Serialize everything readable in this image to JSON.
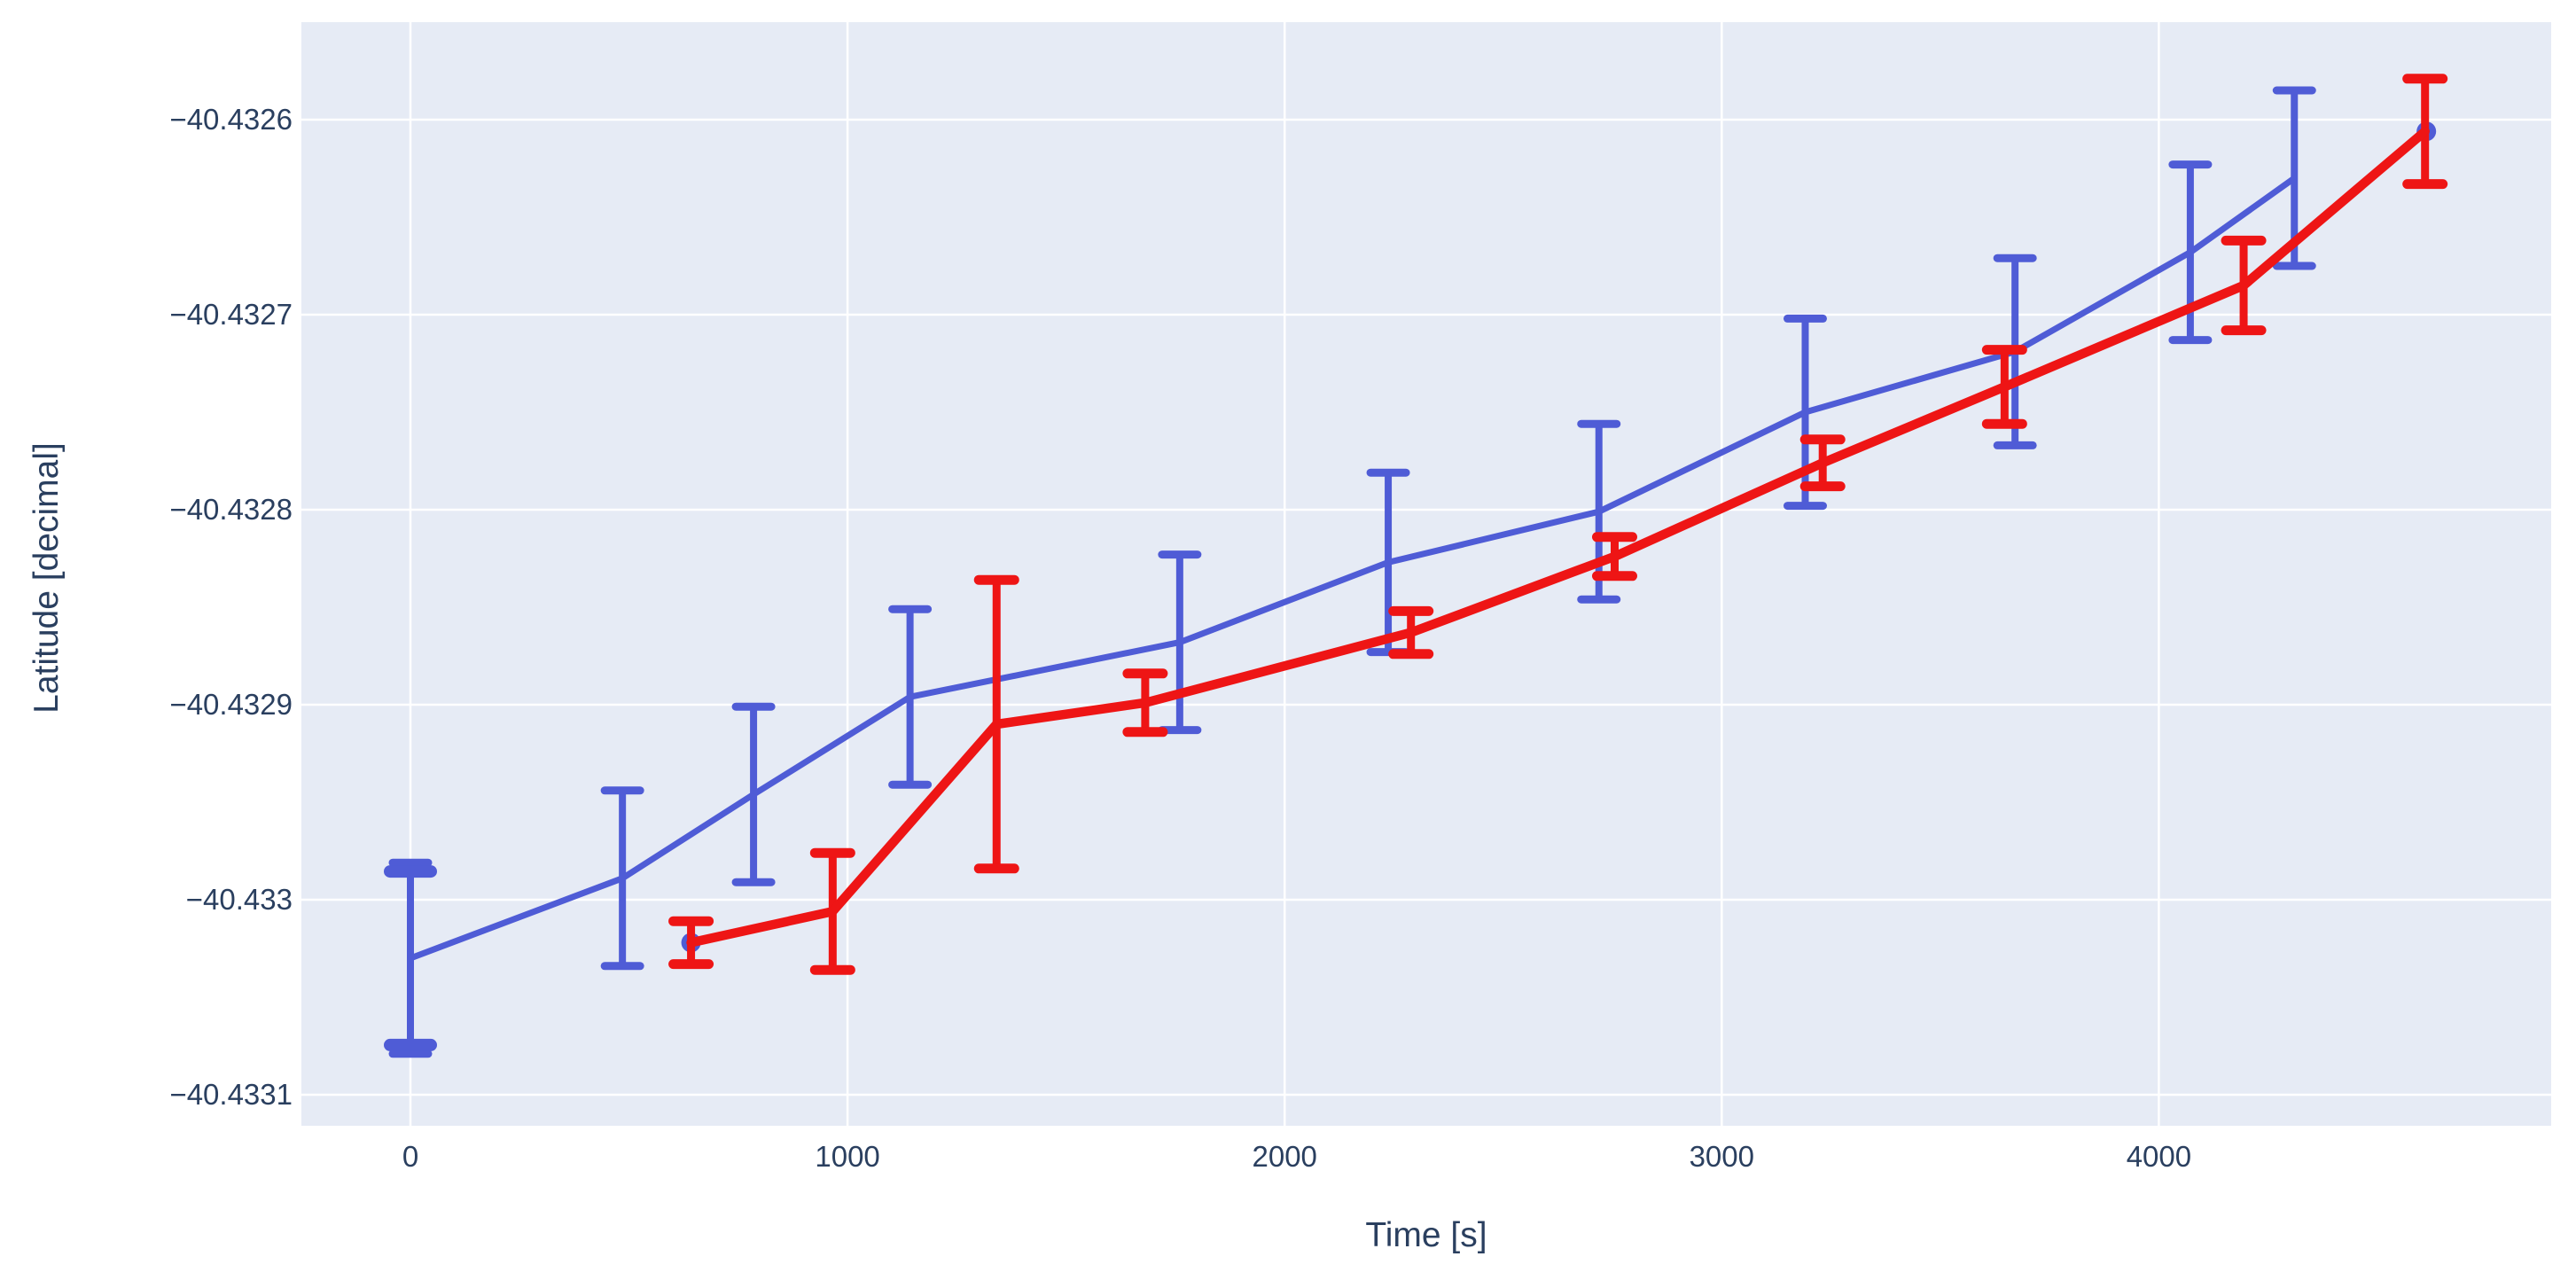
{
  "page": {
    "background_color": "#ffffff",
    "plot_background_color": "#e6ebf5",
    "grid_color": "#ffffff",
    "tick_label_color": "#2a3f5f",
    "axis_title_color": "#2a3f5f"
  },
  "chart_data": {
    "type": "line",
    "title": "",
    "xlabel": "Time [s]",
    "ylabel": "Latitude [decimal]",
    "grid": true,
    "legend_position": "none",
    "xlim": [
      -250,
      4890
    ],
    "ylim": [
      -40.433116,
      -40.43255
    ],
    "x_ticks": [
      0,
      1000,
      2000,
      3000,
      4000
    ],
    "x_tick_labels": [
      "0",
      "1000",
      "2000",
      "3000",
      "4000"
    ],
    "y_ticks": [
      -40.4326,
      -40.4327,
      -40.4328,
      -40.4329,
      -40.433,
      -40.4331
    ],
    "y_tick_labels": [
      "−40.4326",
      "−40.4327",
      "−40.4328",
      "−40.4329",
      "−40.433",
      "−40.4331"
    ],
    "series": [
      {
        "name": "blue-track",
        "color": "#4f5cd6",
        "style": "line-with-error-bars",
        "x": [
          0,
          485,
          785,
          1143,
          1760,
          2237,
          2719,
          3191,
          3671,
          4072,
          4310
        ],
        "y": [
          -40.43303,
          -40.432989,
          -40.432946,
          -40.432896,
          -40.432868,
          -40.432827,
          -40.432801,
          -40.43275,
          -40.432719,
          -40.432668,
          -40.43263
        ],
        "yerr": [
          4.9e-05,
          4.5e-05,
          4.5e-05,
          4.5e-05,
          4.5e-05,
          4.6e-05,
          4.5e-05,
          4.8e-05,
          4.8e-05,
          4.5e-05,
          4.5e-05
        ],
        "extra_caps": [
          {
            "point_index": 0,
            "yerr": 4.45e-05
          }
        ]
      },
      {
        "name": "red-track",
        "color": "#ee1515",
        "style": "line-with-error-bars",
        "x": [
          642,
          966,
          1341,
          1681,
          2289,
          2755,
          3231,
          3647,
          4194,
          4609
        ],
        "y": [
          -40.433022,
          -40.433006,
          -40.43291,
          -40.432899,
          -40.432863,
          -40.432824,
          -40.432776,
          -40.432737,
          -40.432685,
          -40.432606
        ],
        "yerr": [
          1.1e-05,
          3e-05,
          7.4e-05,
          1.5e-05,
          1.1e-05,
          1e-05,
          1.2e-05,
          1.9e-05,
          2.3e-05,
          2.7e-05
        ]
      }
    ],
    "isolated_points": [
      {
        "name": "blue-dot-under-red-start",
        "color": "#4f5cd6",
        "x": 642,
        "y": -40.433022
      },
      {
        "name": "blue-dot-under-red-end",
        "color": "#4f5cd6",
        "x": 4612,
        "y": -40.432606
      }
    ]
  }
}
